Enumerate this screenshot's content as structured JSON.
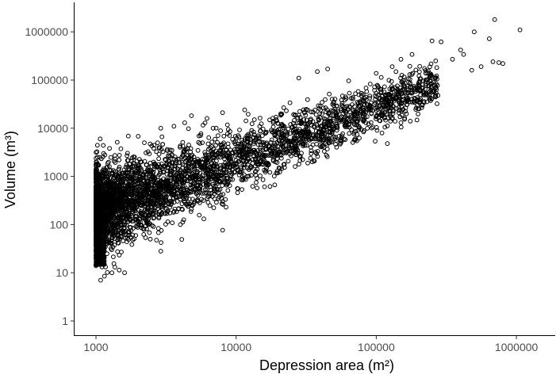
{
  "chart_data": {
    "type": "scatter",
    "title": "",
    "xlabel": "Depression area (m²)",
    "ylabel": "Volume (m³)",
    "x_scale": "log10",
    "y_scale": "log10",
    "xlim": [
      800,
      1500000
    ],
    "ylim": [
      0.7,
      3000000
    ],
    "x_ticks": [
      1000,
      10000,
      100000,
      1000000
    ],
    "x_tick_labels": [
      "1000",
      "10000",
      "100000",
      "1000000"
    ],
    "y_ticks": [
      1,
      10,
      100,
      1000,
      10000,
      100000,
      1000000
    ],
    "y_tick_labels": [
      "1",
      "10",
      "100",
      "1000",
      "10000",
      "100000",
      "1000000"
    ],
    "grid": false,
    "legend": "none",
    "marker": "open-circle",
    "marker_color": "#000000",
    "point_cloud": {
      "description_of_trend": "log(volume) ≈ 1.1·log(area) − 1.1 with wide spread at small areas",
      "x_min": 1000,
      "x_max": 1100000,
      "y_min": 7,
      "y_max": 1800000
    },
    "notable_points": [
      {
        "x": 1060000,
        "y": 1100000
      },
      {
        "x": 700000,
        "y": 1800000
      },
      {
        "x": 500000,
        "y": 1000000
      },
      {
        "x": 640000,
        "y": 720000
      },
      {
        "x": 290000,
        "y": 620000
      },
      {
        "x": 250000,
        "y": 650000
      },
      {
        "x": 400000,
        "y": 420000
      },
      {
        "x": 800000,
        "y": 220000
      },
      {
        "x": 750000,
        "y": 230000
      },
      {
        "x": 680000,
        "y": 240000
      },
      {
        "x": 560000,
        "y": 190000
      },
      {
        "x": 480000,
        "y": 160000
      },
      {
        "x": 420000,
        "y": 340000
      },
      {
        "x": 350000,
        "y": 270000
      },
      {
        "x": 180000,
        "y": 340000
      },
      {
        "x": 150000,
        "y": 270000
      },
      {
        "x": 130000,
        "y": 190000
      },
      {
        "x": 120000,
        "y": 4800
      },
      {
        "x": 175000,
        "y": 14000
      },
      {
        "x": 150000,
        "y": 13000
      },
      {
        "x": 60000,
        "y": 5800
      },
      {
        "x": 45000,
        "y": 170000
      },
      {
        "x": 38000,
        "y": 150000
      },
      {
        "x": 28000,
        "y": 110000
      },
      {
        "x": 12000,
        "y": 1000
      },
      {
        "x": 8500,
        "y": 700
      },
      {
        "x": 5000,
        "y": 550
      },
      {
        "x": 4000,
        "y": 100
      },
      {
        "x": 2900,
        "y": 28
      },
      {
        "x": 1300,
        "y": 10
      },
      {
        "x": 1080,
        "y": 7
      },
      {
        "x": 1150,
        "y": 8.5
      },
      {
        "x": 1600,
        "y": 10
      },
      {
        "x": 1250,
        "y": 3800
      },
      {
        "x": 2000,
        "y": 6800
      },
      {
        "x": 2900,
        "y": 10000
      },
      {
        "x": 4300,
        "y": 13000
      },
      {
        "x": 3600,
        "y": 11000
      },
      {
        "x": 6200,
        "y": 16000
      },
      {
        "x": 8000,
        "y": 21000
      }
    ]
  }
}
